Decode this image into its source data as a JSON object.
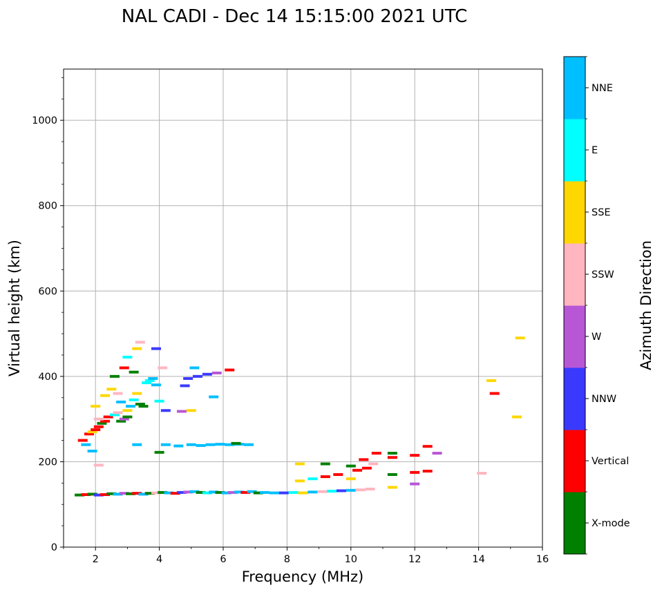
{
  "chart_data": {
    "type": "scatter",
    "title": "NAL CADI - Dec 14 15:15:00 2021 UTC",
    "xlabel": "Frequency (MHz)",
    "ylabel": "Virtual height (km)",
    "xlim": [
      1,
      16
    ],
    "ylim": [
      0,
      1120
    ],
    "x_ticks": [
      2,
      4,
      6,
      8,
      10,
      12,
      14,
      16
    ],
    "x_tick_labels": [
      "2",
      "4",
      "6",
      "8",
      "10",
      "12",
      "14",
      "16"
    ],
    "y_ticks": [
      0,
      200,
      400,
      600,
      800,
      1000
    ],
    "y_tick_labels": [
      "0",
      "200",
      "400",
      "600",
      "800",
      "1000"
    ],
    "grid": true,
    "colorbar": {
      "label": "Azimuth Direction",
      "categories": [
        {
          "name": "X-mode",
          "color": "#008000"
        },
        {
          "name": "Vertical",
          "color": "#ff0000"
        },
        {
          "name": "NNW",
          "color": "#3a3aff"
        },
        {
          "name": "W",
          "color": "#b857d6"
        },
        {
          "name": "SSW",
          "color": "#ffb6c1"
        },
        {
          "name": "SSE",
          "color": "#ffd700"
        },
        {
          "name": "E",
          "color": "#00ffff"
        },
        {
          "name": "NNE",
          "color": "#00bfff"
        }
      ]
    },
    "points": [
      {
        "x": 1.5,
        "y": 122,
        "c": "X-mode"
      },
      {
        "x": 1.7,
        "y": 123,
        "c": "Vertical"
      },
      {
        "x": 1.9,
        "y": 124,
        "c": "X-mode"
      },
      {
        "x": 2.1,
        "y": 122,
        "c": "NNW"
      },
      {
        "x": 2.3,
        "y": 123,
        "c": "Vertical"
      },
      {
        "x": 2.5,
        "y": 125,
        "c": "X-mode"
      },
      {
        "x": 2.7,
        "y": 124,
        "c": "NNE"
      },
      {
        "x": 2.9,
        "y": 126,
        "c": "W"
      },
      {
        "x": 3.1,
        "y": 125,
        "c": "X-mode"
      },
      {
        "x": 3.3,
        "y": 126,
        "c": "Vertical"
      },
      {
        "x": 3.5,
        "y": 124,
        "c": "NNE"
      },
      {
        "x": 3.7,
        "y": 126,
        "c": "X-mode"
      },
      {
        "x": 3.9,
        "y": 127,
        "c": "SSW"
      },
      {
        "x": 4.1,
        "y": 128,
        "c": "X-mode"
      },
      {
        "x": 4.3,
        "y": 127,
        "c": "NNE"
      },
      {
        "x": 4.5,
        "y": 126,
        "c": "Vertical"
      },
      {
        "x": 4.7,
        "y": 128,
        "c": "NNW"
      },
      {
        "x": 4.9,
        "y": 129,
        "c": "W"
      },
      {
        "x": 5.1,
        "y": 130,
        "c": "NNE"
      },
      {
        "x": 5.3,
        "y": 128,
        "c": "X-mode"
      },
      {
        "x": 5.5,
        "y": 127,
        "c": "E"
      },
      {
        "x": 5.7,
        "y": 129,
        "c": "NNE"
      },
      {
        "x": 5.9,
        "y": 128,
        "c": "X-mode"
      },
      {
        "x": 6.1,
        "y": 127,
        "c": "NNE"
      },
      {
        "x": 6.3,
        "y": 128,
        "c": "W"
      },
      {
        "x": 6.5,
        "y": 129,
        "c": "NNE"
      },
      {
        "x": 6.7,
        "y": 128,
        "c": "Vertical"
      },
      {
        "x": 6.9,
        "y": 130,
        "c": "NNE"
      },
      {
        "x": 7.1,
        "y": 127,
        "c": "X-mode"
      },
      {
        "x": 7.3,
        "y": 128,
        "c": "NNE"
      },
      {
        "x": 7.6,
        "y": 127,
        "c": "NNE"
      },
      {
        "x": 7.9,
        "y": 127,
        "c": "NNW"
      },
      {
        "x": 8.2,
        "y": 128,
        "c": "E"
      },
      {
        "x": 8.5,
        "y": 127,
        "c": "SSE"
      },
      {
        "x": 8.8,
        "y": 129,
        "c": "NNE"
      },
      {
        "x": 9.1,
        "y": 130,
        "c": "SSW"
      },
      {
        "x": 9.4,
        "y": 131,
        "c": "E"
      },
      {
        "x": 9.7,
        "y": 132,
        "c": "NNW"
      },
      {
        "x": 10.0,
        "y": 133,
        "c": "NNE"
      },
      {
        "x": 10.3,
        "y": 134,
        "c": "SSW"
      },
      {
        "x": 10.6,
        "y": 136,
        "c": "SSW"
      },
      {
        "x": 8.4,
        "y": 155,
        "c": "SSE"
      },
      {
        "x": 8.8,
        "y": 160,
        "c": "E"
      },
      {
        "x": 9.2,
        "y": 165,
        "c": "Vertical"
      },
      {
        "x": 9.6,
        "y": 170,
        "c": "Vertical"
      },
      {
        "x": 10.0,
        "y": 160,
        "c": "SSE"
      },
      {
        "x": 10.2,
        "y": 180,
        "c": "Vertical"
      },
      {
        "x": 10.5,
        "y": 185,
        "c": "Vertical"
      },
      {
        "x": 10.0,
        "y": 190,
        "c": "X-mode"
      },
      {
        "x": 10.4,
        "y": 205,
        "c": "Vertical"
      },
      {
        "x": 10.7,
        "y": 195,
        "c": "SSW"
      },
      {
        "x": 10.8,
        "y": 220,
        "c": "Vertical"
      },
      {
        "x": 11.3,
        "y": 140,
        "c": "SSE"
      },
      {
        "x": 11.3,
        "y": 170,
        "c": "X-mode"
      },
      {
        "x": 11.3,
        "y": 210,
        "c": "Vertical"
      },
      {
        "x": 11.3,
        "y": 220,
        "c": "X-mode"
      },
      {
        "x": 12.0,
        "y": 148,
        "c": "W"
      },
      {
        "x": 12.0,
        "y": 175,
        "c": "Vertical"
      },
      {
        "x": 12.0,
        "y": 215,
        "c": "Vertical"
      },
      {
        "x": 12.4,
        "y": 178,
        "c": "Vertical"
      },
      {
        "x": 12.4,
        "y": 236,
        "c": "Vertical"
      },
      {
        "x": 12.7,
        "y": 220,
        "c": "W"
      },
      {
        "x": 8.4,
        "y": 195,
        "c": "SSE"
      },
      {
        "x": 9.2,
        "y": 195,
        "c": "X-mode"
      },
      {
        "x": 4.2,
        "y": 240,
        "c": "NNE"
      },
      {
        "x": 5.0,
        "y": 240,
        "c": "NNE"
      },
      {
        "x": 5.3,
        "y": 238,
        "c": "NNE"
      },
      {
        "x": 5.6,
        "y": 240,
        "c": "NNE"
      },
      {
        "x": 5.9,
        "y": 241,
        "c": "NNE"
      },
      {
        "x": 6.2,
        "y": 240,
        "c": "NNE"
      },
      {
        "x": 6.5,
        "y": 241,
        "c": "NNE"
      },
      {
        "x": 6.8,
        "y": 240,
        "c": "NNE"
      },
      {
        "x": 6.4,
        "y": 243,
        "c": "X-mode"
      },
      {
        "x": 3.3,
        "y": 240,
        "c": "NNE"
      },
      {
        "x": 4.6,
        "y": 237,
        "c": "NNE"
      },
      {
        "x": 4.9,
        "y": 395,
        "c": "NNW"
      },
      {
        "x": 5.2,
        "y": 400,
        "c": "NNW"
      },
      {
        "x": 5.5,
        "y": 405,
        "c": "NNW"
      },
      {
        "x": 5.8,
        "y": 408,
        "c": "W"
      },
      {
        "x": 5.1,
        "y": 420,
        "c": "NNE"
      },
      {
        "x": 6.2,
        "y": 415,
        "c": "Vertical"
      },
      {
        "x": 4.2,
        "y": 320,
        "c": "NNW"
      },
      {
        "x": 4.7,
        "y": 318,
        "c": "W"
      },
      {
        "x": 5.0,
        "y": 320,
        "c": "SSE"
      },
      {
        "x": 5.7,
        "y": 352,
        "c": "NNE"
      },
      {
        "x": 4.8,
        "y": 378,
        "c": "NNW"
      },
      {
        "x": 4.1,
        "y": 420,
        "c": "SSW"
      },
      {
        "x": 3.9,
        "y": 465,
        "c": "NNW"
      },
      {
        "x": 3.9,
        "y": 380,
        "c": "NNE"
      },
      {
        "x": 1.6,
        "y": 250,
        "c": "Vertical"
      },
      {
        "x": 1.7,
        "y": 240,
        "c": "NNE"
      },
      {
        "x": 1.8,
        "y": 265,
        "c": "Vertical"
      },
      {
        "x": 1.9,
        "y": 270,
        "c": "SSE"
      },
      {
        "x": 2.0,
        "y": 275,
        "c": "Vertical"
      },
      {
        "x": 2.1,
        "y": 282,
        "c": "Vertical"
      },
      {
        "x": 2.2,
        "y": 290,
        "c": "X-mode"
      },
      {
        "x": 2.3,
        "y": 295,
        "c": "Vertical"
      },
      {
        "x": 2.4,
        "y": 305,
        "c": "Vertical"
      },
      {
        "x": 2.6,
        "y": 310,
        "c": "E"
      },
      {
        "x": 2.7,
        "y": 315,
        "c": "SSW"
      },
      {
        "x": 2.8,
        "y": 295,
        "c": "X-mode"
      },
      {
        "x": 2.9,
        "y": 300,
        "c": "W"
      },
      {
        "x": 3.0,
        "y": 305,
        "c": "X-mode"
      },
      {
        "x": 3.1,
        "y": 330,
        "c": "NNE"
      },
      {
        "x": 3.2,
        "y": 345,
        "c": "E"
      },
      {
        "x": 3.3,
        "y": 360,
        "c": "SSE"
      },
      {
        "x": 3.4,
        "y": 335,
        "c": "X-mode"
      },
      {
        "x": 3.5,
        "y": 330,
        "c": "X-mode"
      },
      {
        "x": 3.6,
        "y": 385,
        "c": "E"
      },
      {
        "x": 3.7,
        "y": 390,
        "c": "E"
      },
      {
        "x": 3.8,
        "y": 395,
        "c": "NNE"
      },
      {
        "x": 3.2,
        "y": 410,
        "c": "X-mode"
      },
      {
        "x": 2.7,
        "y": 360,
        "c": "SSW"
      },
      {
        "x": 2.5,
        "y": 370,
        "c": "SSE"
      },
      {
        "x": 2.3,
        "y": 355,
        "c": "SSE"
      },
      {
        "x": 2.0,
        "y": 330,
        "c": "SSE"
      },
      {
        "x": 2.6,
        "y": 400,
        "c": "X-mode"
      },
      {
        "x": 2.9,
        "y": 420,
        "c": "Vertical"
      },
      {
        "x": 3.0,
        "y": 445,
        "c": "E"
      },
      {
        "x": 3.4,
        "y": 480,
        "c": "SSW"
      },
      {
        "x": 3.3,
        "y": 465,
        "c": "SSE"
      },
      {
        "x": 2.8,
        "y": 340,
        "c": "NNE"
      },
      {
        "x": 3.0,
        "y": 320,
        "c": "SSE"
      },
      {
        "x": 2.1,
        "y": 300,
        "c": "SSW"
      },
      {
        "x": 1.9,
        "y": 225,
        "c": "NNE"
      },
      {
        "x": 2.1,
        "y": 192,
        "c": "SSW"
      },
      {
        "x": 4.0,
        "y": 222,
        "c": "X-mode"
      },
      {
        "x": 4.0,
        "y": 342,
        "c": "E"
      },
      {
        "x": 14.4,
        "y": 390,
        "c": "SSE"
      },
      {
        "x": 14.5,
        "y": 360,
        "c": "Vertical"
      },
      {
        "x": 15.2,
        "y": 305,
        "c": "SSE"
      },
      {
        "x": 15.3,
        "y": 490,
        "c": "SSE"
      },
      {
        "x": 14.1,
        "y": 173,
        "c": "SSW"
      }
    ]
  }
}
